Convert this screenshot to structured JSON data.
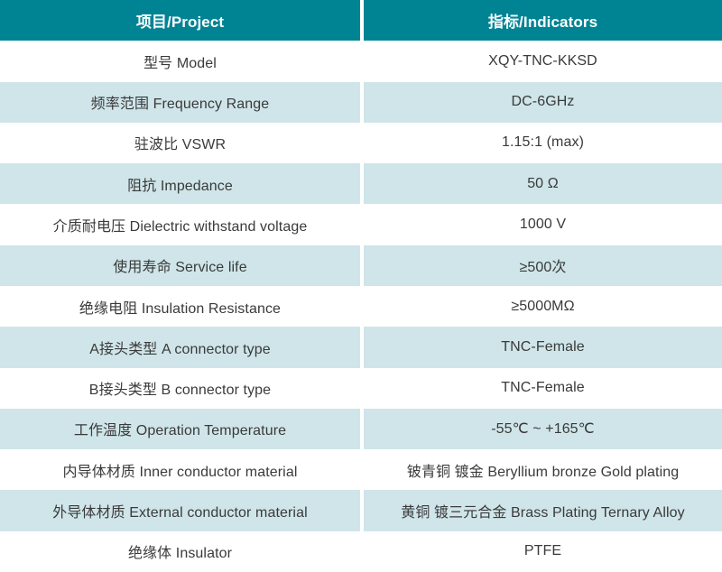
{
  "colors": {
    "header_bg": "#008494",
    "header_text": "#ffffff",
    "row_alt_bg": "#cfe5e9",
    "row_bg": "#ffffff",
    "body_text": "#3a3a3a",
    "divider": "#ffffff"
  },
  "table": {
    "header": {
      "project_col": "项目/Project",
      "indicators_col": "指标/Indicators"
    },
    "rows": [
      {
        "label": "型号 Model",
        "value": "XQY-TNC-KKSD"
      },
      {
        "label": "频率范围 Frequency Range",
        "value": "DC-6GHz"
      },
      {
        "label": "驻波比 VSWR",
        "value": "1.15:1 (max)"
      },
      {
        "label": "阻抗 Impedance",
        "value": "50 Ω"
      },
      {
        "label": "介质耐电压 Dielectric withstand voltage",
        "value": "1000 V"
      },
      {
        "label": "使用寿命 Service life",
        "value": "≥500次"
      },
      {
        "label": "绝缘电阻 Insulation Resistance",
        "value": "≥5000MΩ"
      },
      {
        "label": "A接头类型 A connector type",
        "value": "TNC-Female"
      },
      {
        "label": "B接头类型 B connector type",
        "value": "TNC-Female"
      },
      {
        "label": "工作温度 Operation Temperature",
        "value": "-55℃ ~ +165℃"
      },
      {
        "label": "内导体材质 Inner conductor material",
        "value": "铍青铜 镀金 Beryllium bronze Gold plating"
      },
      {
        "label": "外导体材质 External conductor material",
        "value": "黄铜 镀三元合金 Brass Plating Ternary Alloy"
      },
      {
        "label": "绝缘体 Insulator",
        "value": "PTFE"
      }
    ]
  }
}
